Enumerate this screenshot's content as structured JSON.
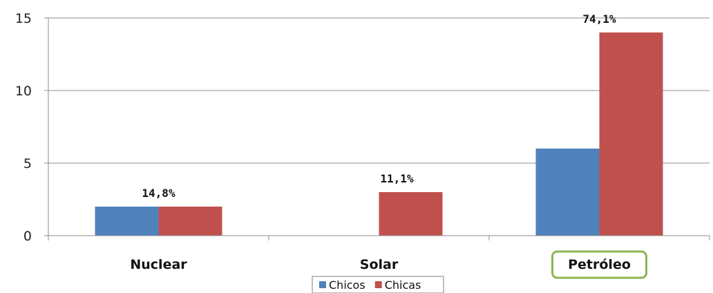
{
  "chart_data": {
    "type": "bar",
    "categories": [
      "Nuclear",
      "Solar",
      "Petróleo"
    ],
    "series": [
      {
        "name": "Chicos",
        "values": [
          2,
          0,
          6
        ],
        "color": "#4f81bd"
      },
      {
        "name": "Chicas",
        "values": [
          2,
          3,
          14
        ],
        "color": "#c0504d"
      }
    ],
    "ylim": [
      0,
      15
    ],
    "yticks": [
      0,
      5,
      10,
      15
    ],
    "grid": true,
    "legend": "bottom",
    "data_labels": [
      "14,8%",
      "11,1%",
      "74,1%"
    ],
    "highlighted_category": "Petróleo",
    "highlight_color": "#8db453"
  }
}
